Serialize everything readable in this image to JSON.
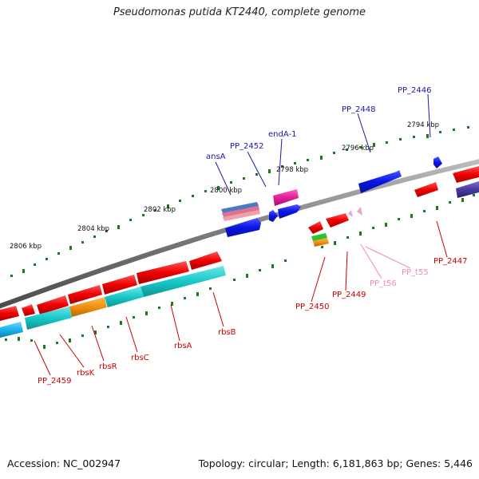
{
  "title": "Pseudomonas putida KT2440, complete genome",
  "footer": {
    "accession": "Accession: NC_002947",
    "stats": "Topology: circular; Length: 6,181,863 bp; Genes: 5,446"
  },
  "ruler": [
    "2794 kbp",
    "2796 kbp",
    "2798 kbp",
    "2800 kbp",
    "2802 kbp",
    "2804 kbp",
    "2806 kbp"
  ],
  "labels": {
    "pp2446": "PP_2446",
    "pp2448": "PP_2448",
    "enda1": "endA-1",
    "pp2452": "PP_2452",
    "ansa": "ansA",
    "pp2447": "PP_2447",
    "ppt55": "PP_t55",
    "ppt56": "PP_t56",
    "pp2449": "PP_2449",
    "pp2450": "PP_2450",
    "rbsb": "rbsB",
    "rbsa": "rbsA",
    "rbsc": "rbsC",
    "rbsr": "rbsR",
    "rbsk": "rbsK",
    "pp2459": "PP_2459"
  },
  "colors": {
    "forward_label": "#1a1aa6",
    "reverse_label": "#cc0000",
    "trna_label": "#f08ab8",
    "backbone": "#7a7a7a",
    "ticks": "#1f7a1f",
    "cds_red": "#ee0000",
    "cds_blue": "#0a14e6",
    "cds_magenta": "#e0209a",
    "cds_cyan": "#18c8c8",
    "cds_orange": "#f09010",
    "cds_sky": "#18b4f0",
    "cds_indigo": "#4a3aa0",
    "cds_green": "#30c030",
    "trna_pink": "#f0a0c8"
  }
}
